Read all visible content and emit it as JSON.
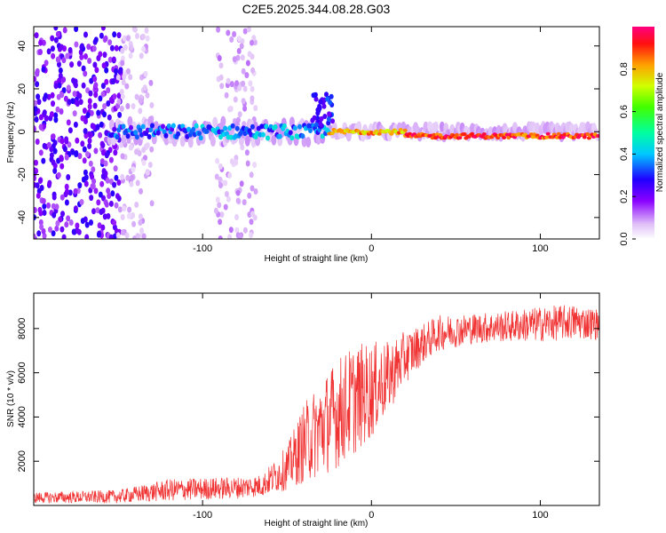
{
  "title": "C2E5.2025.344.08.28.G03",
  "chart_data": [
    {
      "type": "heatmap",
      "name": "spectrogram",
      "xlabel": "Height of straight line (km)",
      "ylabel": "Frequency (Hz)",
      "xlim": [
        -200,
        135
      ],
      "ylim": [
        -50,
        49
      ],
      "xticks": [
        -100,
        0,
        100
      ],
      "xtick_labels": [
        "-100",
        "0",
        "100"
      ],
      "yticks": [
        -40,
        -20,
        0,
        20,
        40
      ],
      "ytick_labels": [
        "-40",
        "-20",
        "0",
        "20",
        "40"
      ],
      "colorbar": {
        "label": "Normalized spectral amplitude",
        "range": [
          0,
          1
        ],
        "ticks": [
          0.0,
          0.2,
          0.4,
          0.6,
          0.8
        ],
        "tick_labels": [
          "0.0",
          "0.2",
          "0.4",
          "0.6",
          "0.8"
        ]
      },
      "ridge": {
        "description_segments": [
          {
            "x": [
              -155,
              -110
            ],
            "freq": 0,
            "amplitude": 0.3
          },
          {
            "x": [
              -110,
              -25
            ],
            "freq": 0,
            "amplitude": 0.35
          },
          {
            "x": [
              -25,
              20
            ],
            "freq": 0,
            "amplitude": 0.8
          },
          {
            "x": [
              20,
              135
            ],
            "freq": -2,
            "amplitude": 0.9
          }
        ],
        "noise_region_km": [
          -200,
          -150
        ],
        "noise_region_2_km": [
          -90,
          -70
        ]
      }
    },
    {
      "type": "line",
      "name": "snr",
      "xlabel": "Height of straight line (km)",
      "ylabel": "SNR (10 * v/v)",
      "xlim": [
        -200,
        135
      ],
      "ylim": [
        0,
        9600
      ],
      "xticks": [
        -100,
        0,
        100
      ],
      "xtick_labels": [
        "-100",
        "0",
        "100"
      ],
      "yticks": [
        2000,
        4000,
        6000,
        8000
      ],
      "ytick_labels": [
        "2000",
        "4000",
        "6000",
        "8000"
      ],
      "color": "#f03232",
      "envelope_x": [
        -200,
        -150,
        -120,
        -80,
        -65,
        -50,
        -40,
        -30,
        -20,
        -10,
        0,
        10,
        20,
        30,
        40,
        60,
        80,
        100,
        120,
        135
      ],
      "envelope_y": [
        350,
        400,
        700,
        800,
        900,
        1700,
        2800,
        3500,
        4200,
        4800,
        5200,
        5800,
        6700,
        7300,
        7800,
        8000,
        8100,
        8200,
        8300,
        8200
      ],
      "spread": [
        250,
        300,
        500,
        500,
        500,
        1000,
        1800,
        2200,
        2500,
        2500,
        2200,
        1600,
        1200,
        900,
        800,
        700,
        700,
        800,
        800,
        700
      ]
    }
  ]
}
